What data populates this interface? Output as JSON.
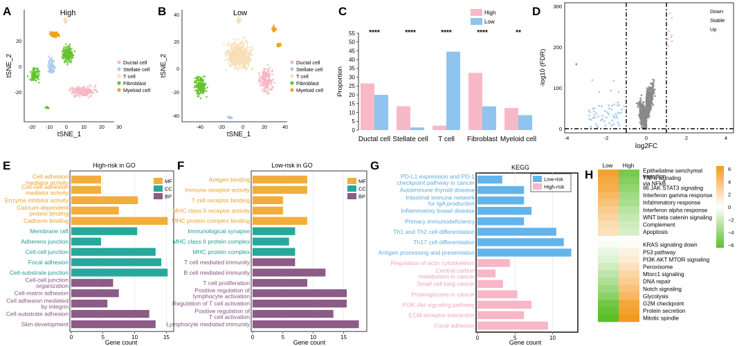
{
  "figure": {
    "colors": {
      "ductal": "#f6b6c3",
      "stellate": "#a9c9ee",
      "tcell": "#f7dfb4",
      "fibroblast": "#62c42c",
      "myeloid": "#f2a21f",
      "high": "#f8b9c7",
      "low": "#8fc4ef",
      "mf": "#f2ad3c",
      "cc": "#27a89d",
      "bp": "#8c5b86",
      "kegg_low": "#64b4ec",
      "kegg_high": "#f8b6c6",
      "volcano_gray": "#8a8a8a",
      "volcano_blue": "#a9cdea",
      "volcano_pink": "#f3b7c5"
    }
  },
  "panel_a": {
    "letter": "A",
    "title": "High",
    "xlabel": "tSNE_1",
    "ylabel": "tSNE_2",
    "xticks": [
      "-20",
      "-10",
      "0",
      "10",
      "20",
      "30"
    ],
    "yticks": [
      "-20",
      "0",
      "20"
    ],
    "legend": [
      "Ductal cell",
      "Stellate cell",
      "T cell",
      "Fibroblast",
      "Myeloid cell"
    ]
  },
  "panel_b": {
    "letter": "B",
    "title": "Low",
    "xlabel": "tSNE_1",
    "ylabel": "tSNE_2",
    "xticks": [
      "-40",
      "-20",
      "0",
      "20",
      "40"
    ],
    "yticks": [
      "-40",
      "-20",
      "0",
      "20",
      "40"
    ],
    "legend": [
      "Ductal cell",
      "Stellate cell",
      "T cell",
      "Fibroblast",
      "Myeloid cell"
    ]
  },
  "panel_c": {
    "letter": "C",
    "chart_data": {
      "type": "bar",
      "categories": [
        "Ductal cell",
        "Stellate cell",
        "T cell",
        "Fibroblast",
        "Myeloid cell"
      ],
      "series": [
        {
          "name": "High",
          "values": [
            26.5,
            13.5,
            2.5,
            32.5,
            12.5
          ]
        },
        {
          "name": "Low",
          "values": [
            20,
            1.5,
            44.5,
            13.5,
            8.5
          ]
        }
      ],
      "significance": [
        "****",
        "****",
        "****",
        "****",
        "**"
      ],
      "ylabel": "Proportion",
      "ylim": [
        0,
        55
      ],
      "yticks": [
        "0",
        "5",
        "10",
        "15",
        "20",
        "25",
        "30",
        "35",
        "40",
        "45",
        "50",
        "55"
      ]
    }
  },
  "panel_d": {
    "letter": "D",
    "xlabel": "log2FC",
    "ylabel": "-log10 (FDR)",
    "xticks": [
      "-4",
      "-2",
      "0",
      "2",
      "4"
    ],
    "yticks": [
      "0",
      "100",
      "200",
      "300"
    ],
    "legend": [
      "Down",
      "Stable",
      "Up"
    ]
  },
  "panel_e": {
    "letter": "E",
    "chart_data": {
      "type": "bar",
      "title": "High-risk in GO",
      "xlabel": "Gene count",
      "xticks": [
        "0",
        "5",
        "10",
        "15"
      ],
      "xlim": [
        0,
        15.5
      ],
      "legend": [
        "MF",
        "CC",
        "BP"
      ],
      "items": [
        {
          "label": "Cell adhesion mediator activity",
          "value": 4.7,
          "group": "MF"
        },
        {
          "label": "Cell-cell adhesion mediator activity",
          "value": 4.7,
          "group": "MF"
        },
        {
          "label": "Enzyme inhibitor activity",
          "value": 10.5,
          "group": "MF"
        },
        {
          "label": "Calcium-dependent protein binding",
          "value": 7.5,
          "group": "MF"
        },
        {
          "label": "Cadherin binding",
          "value": 15.2,
          "group": "MF"
        },
        {
          "label": "Membrane raft",
          "value": 10.4,
          "group": "CC"
        },
        {
          "label": "Adherens junction",
          "value": 4.7,
          "group": "CC"
        },
        {
          "label": "Cell-cell junction",
          "value": 13.3,
          "group": "CC"
        },
        {
          "label": "Focal adhesion",
          "value": 14.2,
          "group": "CC"
        },
        {
          "label": "Cell-substrate junction",
          "value": 15.2,
          "group": "CC"
        },
        {
          "label": "Cell-cell junction organization",
          "value": 6.6,
          "group": "BP"
        },
        {
          "label": "Cell-matrix adhesion",
          "value": 7.5,
          "group": "BP"
        },
        {
          "label": "Cell adhesion mediated by integrin",
          "value": 5.7,
          "group": "BP"
        },
        {
          "label": "Cell-substrate adhesion",
          "value": 12.3,
          "group": "BP"
        },
        {
          "label": "Skin development",
          "value": 13.3,
          "group": "BP"
        }
      ]
    }
  },
  "panel_f": {
    "letter": "F",
    "chart_data": {
      "type": "bar",
      "title": "Low-risk in GO",
      "xlabel": "Gene count",
      "xticks": [
        "0",
        "5",
        "10",
        "15"
      ],
      "xlim": [
        0,
        18
      ],
      "legend": [
        "MF",
        "CC",
        "BP"
      ],
      "items": [
        {
          "label": "Antigen binding",
          "value": 9,
          "group": "MF"
        },
        {
          "label": "Immune receptor activity",
          "value": 9,
          "group": "MF"
        },
        {
          "label": "T cell receptor binding",
          "value": 5,
          "group": "MF"
        },
        {
          "label": "MHC class II receptor activity",
          "value": 5,
          "group": "MF"
        },
        {
          "label": "MHC protein complex binding",
          "value": 9,
          "group": "MF"
        },
        {
          "label": "Immunological synapse",
          "value": 7,
          "group": "CC"
        },
        {
          "label": "MHC class II protein complex",
          "value": 6,
          "group": "CC"
        },
        {
          "label": "MHC protein complex",
          "value": 7,
          "group": "CC"
        },
        {
          "label": "T cell mediated immunity",
          "value": 7,
          "group": "BP"
        },
        {
          "label": "B cell mediated immunity",
          "value": 12,
          "group": "BP"
        },
        {
          "label": "T cell proliferation",
          "value": 9,
          "group": "BP"
        },
        {
          "label": "Positive regulation of lymphocyte activation",
          "value": 15.5,
          "group": "BP"
        },
        {
          "label": "Regulation of T cell activation",
          "value": 15.5,
          "group": "BP"
        },
        {
          "label": "Positive regulation of T cell activation",
          "value": 13.3,
          "group": "BP"
        },
        {
          "label": "Lymphocyte mediated immunity",
          "value": 17.5,
          "group": "BP"
        }
      ]
    }
  },
  "panel_g": {
    "letter": "G",
    "chart_data": {
      "type": "bar",
      "title": "KEGG",
      "xlabel": "Gene count",
      "xticks": [
        "0",
        "5",
        "10"
      ],
      "xlim": [
        0,
        13
      ],
      "legend": [
        "Low-risk",
        "High-risk"
      ],
      "items": [
        {
          "label": "PD-L1 expression and PD-1 checkpoint pathway in cancer",
          "value": 3.3,
          "group": "Low-risk"
        },
        {
          "label": "Autoimmune thyroid disease",
          "value": 6.2,
          "group": "Low-risk"
        },
        {
          "label": "Intestinal immune network for IgA production",
          "value": 6.2,
          "group": "Low-risk"
        },
        {
          "label": "Inflammatory bowel disease",
          "value": 7.2,
          "group": "Low-risk"
        },
        {
          "label": "Primary immunodeficiency",
          "value": 6.2,
          "group": "Low-risk"
        },
        {
          "label": "Th1 and Th2 cell differentiation",
          "value": 10.5,
          "group": "Low-risk"
        },
        {
          "label": "Th17 cell differentiation",
          "value": 11.5,
          "group": "Low-risk"
        },
        {
          "label": "Antigen processing and presentation",
          "value": 12.5,
          "group": "Low-risk"
        },
        {
          "label": "Regulation of actin cytoskeleton",
          "value": 4.3,
          "group": "High-risk"
        },
        {
          "label": "Central carbon metabolism in cancer",
          "value": 2.4,
          "group": "High-risk"
        },
        {
          "label": "Small cell lung cancer",
          "value": 3.4,
          "group": "High-risk"
        },
        {
          "label": "Proteoglycans in cancer",
          "value": 5.3,
          "group": "High-risk"
        },
        {
          "label": "PI3K-Akt signaling pathway",
          "value": 7.2,
          "group": "High-risk"
        },
        {
          "label": "ECM-receptor interaction",
          "value": 6.2,
          "group": "High-risk"
        },
        {
          "label": "Focal adhesion",
          "value": 9.4,
          "group": "High-risk"
        }
      ]
    }
  },
  "panel_h": {
    "letter": "H",
    "chart_data": {
      "type": "heatmap",
      "columns": [
        "Low",
        "High"
      ],
      "scale_ticks": [
        "6",
        "4",
        "2",
        "0",
        "−2",
        "−4",
        "−6"
      ],
      "scale_range": [
        -6,
        6
      ],
      "groups": [
        {
          "rows": [
            {
              "label": "Epithelialme senchymal transition",
              "values": [
                5.5,
                -5.0
              ]
            },
            {
              "label": "TNFa signaling via NFkB",
              "values": [
                5.0,
                -4.5
              ]
            },
            {
              "label": "Il6 JAK STAT3 signaling",
              "values": [
                4.8,
                -4.0
              ]
            },
            {
              "label": "Interferon gamma response",
              "values": [
                4.2,
                -3.5
              ]
            },
            {
              "label": "Infalmmatory response",
              "values": [
                3.6,
                -3.2
              ]
            },
            {
              "label": "Interferon alpha response",
              "values": [
                3.0,
                -2.6
              ]
            },
            {
              "label": "WNT beta catenin signaling",
              "values": [
                2.6,
                -2.2
              ]
            },
            {
              "label": "Complement",
              "values": [
                2.0,
                -1.8
              ]
            },
            {
              "label": "Apoptosis",
              "values": [
                1.8,
                -1.5
              ]
            }
          ]
        },
        {
          "rows": [
            {
              "label": "KRAS signaling down",
              "values": [
                -0.3,
                0.3
              ]
            },
            {
              "label": "P53 pathway",
              "values": [
                -0.8,
                0.8
              ]
            },
            {
              "label": "PI3K AKT MTOR signaling",
              "values": [
                -1.2,
                1.2
              ]
            },
            {
              "label": "Peroxisome",
              "values": [
                -1.8,
                1.8
              ]
            },
            {
              "label": "Mtorc1 signaling",
              "values": [
                -2.4,
                2.4
              ]
            },
            {
              "label": "DNA repair",
              "values": [
                -3.0,
                3.0
              ]
            },
            {
              "label": "Notch signaling",
              "values": [
                -3.6,
                3.6
              ]
            },
            {
              "label": "Glycolysis",
              "values": [
                -4.2,
                4.2
              ]
            },
            {
              "label": "G2M checkpoint",
              "values": [
                -5.2,
                5.2
              ]
            },
            {
              "label": "Protein secretion",
              "values": [
                -5.6,
                5.6
              ]
            },
            {
              "label": "Mitotic spindle",
              "values": [
                -6.0,
                6.0
              ]
            }
          ]
        }
      ]
    }
  }
}
